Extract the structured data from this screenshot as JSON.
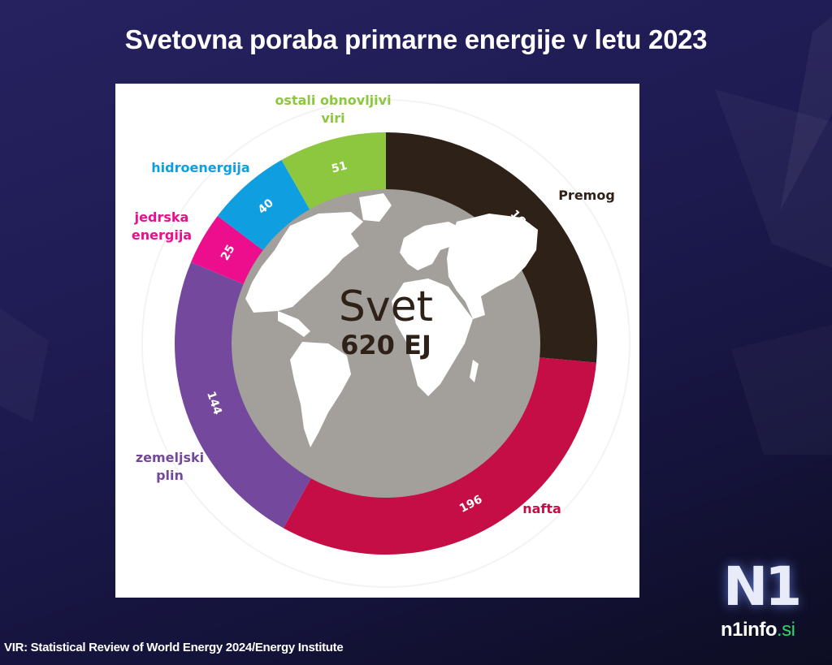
{
  "header": {
    "title": "Svetovna poraba primarne energije v letu 2023"
  },
  "center": {
    "label": "Svet",
    "total": "620 EJ"
  },
  "source": "VIR: Statistical Review of World Energy 2024/Energy Institute",
  "logo": {
    "mark": "N1",
    "site": "n1info",
    "tld": ".si"
  },
  "colors": {
    "background": "#1e1b52",
    "globe": "#a39f9a",
    "coal": "#2e2118",
    "oil": "#c40e45",
    "gas": "#74489c",
    "nuclear": "#ec0e8c",
    "hydro": "#0f9ee0",
    "other_renewables": "#8dc63f",
    "logo_accent": "#2bd66a"
  },
  "chart_data": {
    "type": "pie",
    "subtype": "donut",
    "title": "Svetovna poraba primarne energije v letu 2023",
    "unit": "EJ",
    "center_label": "Svet",
    "total": 620,
    "categories": [
      "Premog",
      "nafta",
      "zemeljski plin",
      "jedrska energija",
      "hidroenergija",
      "ostali obnovljivi viri"
    ],
    "values": [
      164,
      196,
      144,
      25,
      40,
      51
    ],
    "colors": [
      "#2e2118",
      "#c40e45",
      "#74489c",
      "#ec0e8c",
      "#0f9ee0",
      "#8dc63f"
    ],
    "start_angle": "12 o'clock, clockwise",
    "legend_position": "labels outside each slice",
    "source": "VIR: Statistical Review of World Energy 2024/Energy Institute"
  },
  "labels": [
    {
      "text": "Premog",
      "value": "164"
    },
    {
      "text": "nafta",
      "value": "196"
    },
    {
      "text": "zemeljski plin",
      "line1": "zemeljski",
      "line2": "plin",
      "value": "144"
    },
    {
      "text": "jedrska energija",
      "line1": "jedrska",
      "line2": "energija",
      "value": "25"
    },
    {
      "text": "hidroenergija",
      "value": "40"
    },
    {
      "text": "ostali obnovljivi viri",
      "line1": "ostali obnovljivi",
      "line2": "viri",
      "value": "51"
    }
  ]
}
